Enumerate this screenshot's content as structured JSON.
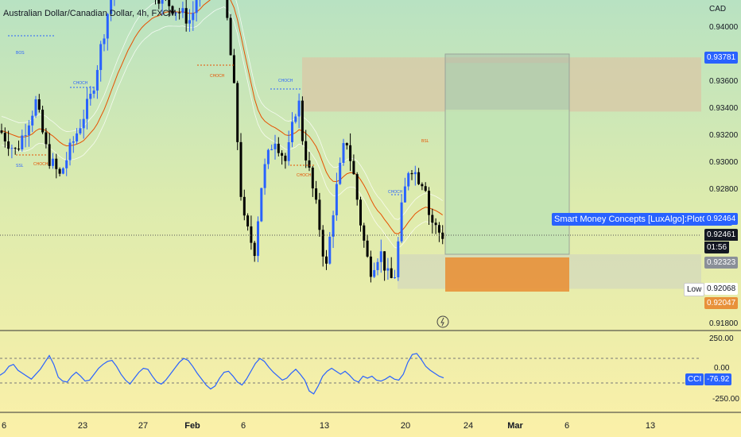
{
  "header": {
    "symbol_title": "Australian Dollar/Canadian Dollar, 4h, FXCM"
  },
  "price_axis": {
    "currency": "CAD",
    "ticks": [
      "0.94000",
      "0.93600",
      "0.93400",
      "0.93200",
      "0.93000",
      "0.92800",
      "0.91800"
    ],
    "badges": {
      "zone_high": "0.93781",
      "indicator_label": "Smart Money Concepts [LuxAlgo]:PlotCandle",
      "indicator_value": "0.92464",
      "last_price": "0.92461",
      "countdown": "01:56",
      "zone_price": "0.92323",
      "low_label": "Low",
      "low_value": "0.92068",
      "stop_value": "0.92047"
    }
  },
  "cci_axis": {
    "ticks": [
      "250.00",
      "0.00",
      "-250.00"
    ],
    "label": "CCI",
    "value": "-76.92"
  },
  "time_axis": {
    "labels": [
      "6",
      "23",
      "27",
      "Feb",
      "6",
      "13",
      "20",
      "24",
      "Mar",
      "6",
      "13"
    ]
  },
  "annotations": {
    "bos": "BOS",
    "choch": "CHOCH",
    "ssl": "SSL",
    "bsl": "BSL"
  },
  "colors": {
    "bull": "#2962ff",
    "bear": "#000000",
    "ema": "#e65100",
    "supply_zone": "#d9c7a6",
    "tp_zone": "#bfe3b4",
    "sl_zone": "#e8913a",
    "cci_line": "#2962ff"
  },
  "chart_data": [
    {
      "type": "candlestick",
      "title": "Australian Dollar/Canadian Dollar, 4h, FXCM",
      "ylim": [
        0.917,
        0.9425
      ],
      "y_unit": "CAD",
      "x_range": "Jan 16 - Mar 13",
      "close_path_anchors": [
        [
          0,
          0.9324
        ],
        [
          20,
          0.9308
        ],
        [
          45,
          0.9345
        ],
        [
          60,
          0.9305
        ],
        [
          75,
          0.929
        ],
        [
          95,
          0.932
        ],
        [
          115,
          0.935
        ],
        [
          130,
          0.9395
        ],
        [
          140,
          0.9425
        ],
        [
          165,
          0.944
        ],
        [
          240,
          0.9405
        ],
        [
          255,
          0.944
        ],
        [
          280,
          0.944
        ],
        [
          295,
          0.935
        ],
        [
          305,
          0.926
        ],
        [
          320,
          0.9235
        ],
        [
          330,
          0.929
        ],
        [
          345,
          0.932
        ],
        [
          360,
          0.93
        ],
        [
          375,
          0.935
        ],
        [
          380,
          0.932
        ],
        [
          390,
          0.929
        ],
        [
          400,
          0.926
        ],
        [
          410,
          0.922
        ],
        [
          420,
          0.927
        ],
        [
          435,
          0.932
        ],
        [
          445,
          0.929
        ],
        [
          455,
          0.925
        ],
        [
          465,
          0.922
        ],
        [
          478,
          0.9235
        ],
        [
          490,
          0.9212
        ],
        [
          497,
          0.9218
        ],
        [
          505,
          0.9265
        ],
        [
          515,
          0.93
        ],
        [
          525,
          0.929
        ],
        [
          535,
          0.9285
        ],
        [
          540,
          0.926
        ],
        [
          550,
          0.925
        ],
        [
          558,
          0.9246
        ]
      ],
      "last_close": 0.92461,
      "ema_visible": true,
      "zones": [
        {
          "name": "supply",
          "from": 0.9338,
          "to": 0.93781
        },
        {
          "name": "demand",
          "from": 0.92068,
          "to": 0.92323
        },
        {
          "name": "take-profit",
          "from": 0.92323,
          "to": 0.9374
        },
        {
          "name": "stop-loss",
          "from": 0.92047,
          "to": 0.923
        }
      ]
    },
    {
      "type": "line",
      "title": "CCI",
      "ylim": [
        -300,
        300
      ],
      "levels": [
        250,
        0,
        -250
      ],
      "last_value": -76.92,
      "values": [
        -50,
        -20,
        40,
        60,
        0,
        -30,
        -60,
        -90,
        -40,
        10,
        80,
        150,
        60,
        -70,
        -110,
        -120,
        -60,
        -20,
        -60,
        -110,
        -100,
        -40,
        20,
        60,
        90,
        100,
        40,
        -40,
        -100,
        -140,
        -80,
        -20,
        20,
        10,
        -60,
        -120,
        -140,
        -100,
        -40,
        20,
        80,
        120,
        100,
        40,
        -30,
        -90,
        -150,
        -190,
        -160,
        -80,
        -20,
        -10,
        -60,
        -120,
        -150,
        -90,
        -10,
        70,
        120,
        90,
        30,
        -20,
        -60,
        -100,
        -80,
        -30,
        10,
        -40,
        -100,
        -210,
        -240,
        -160,
        -60,
        -10,
        20,
        -10,
        -40,
        -10,
        -50,
        -100,
        -120,
        -60,
        -80,
        -60,
        -100,
        -110,
        -90,
        -60,
        -90,
        -100,
        -40,
        80,
        160,
        170,
        110,
        40,
        0,
        -30,
        -60,
        -77
      ]
    }
  ]
}
